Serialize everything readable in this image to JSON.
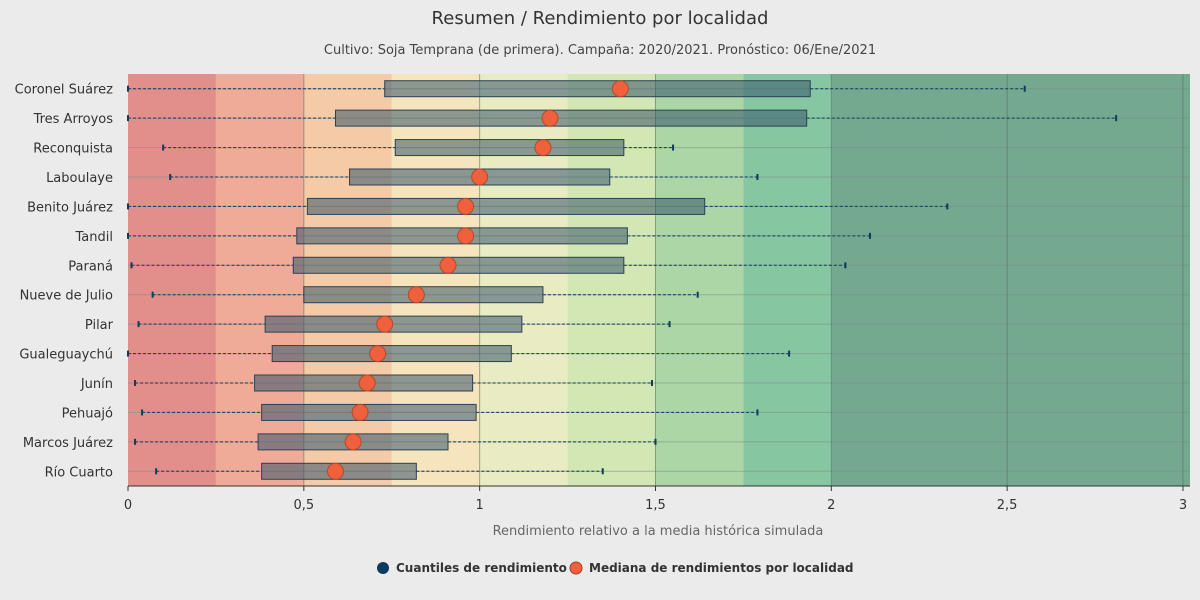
{
  "chart_data": {
    "type": "boxplot",
    "orientation": "horizontal",
    "title": "Resumen / Rendimiento por localidad",
    "subtitle": "Cultivo: Soja Temprana (de primera). Campaña: 2020/2021. Pronóstico: 06/Ene/2021",
    "xlabel": "Rendimiento relativo a la media histórica simulada",
    "ylabel": "",
    "xlim": [
      0,
      3.02
    ],
    "x_ticks": [
      0,
      0.5,
      1,
      1.5,
      2,
      2.5,
      3
    ],
    "x_tick_labels": [
      "0",
      "0,5",
      "1",
      "1,5",
      "2",
      "2,5",
      "3"
    ],
    "grid": true,
    "bands": [
      {
        "from": 0,
        "to": 0.25,
        "color": "#e28e8a"
      },
      {
        "from": 0.25,
        "to": 0.5,
        "color": "#efaa98"
      },
      {
        "from": 0.5,
        "to": 0.75,
        "color": "#f4cba6"
      },
      {
        "from": 0.75,
        "to": 1.0,
        "color": "#f6e4bd"
      },
      {
        "from": 1.0,
        "to": 1.25,
        "color": "#e9ecc3"
      },
      {
        "from": 1.25,
        "to": 1.5,
        "color": "#d2e7b4"
      },
      {
        "from": 1.5,
        "to": 1.75,
        "color": "#acd6a6"
      },
      {
        "from": 1.75,
        "to": 2.0,
        "color": "#86c6a1"
      },
      {
        "from": 2.0,
        "to": 3.02,
        "color": "#74a98f"
      }
    ],
    "categories": [
      "Coronel Suárez",
      "Tres Arroyos",
      "Reconquista",
      "Laboulaye",
      "Benito Juárez",
      "Tandil",
      "Paraná",
      "Nueve de Julio",
      "Pilar",
      "Gualeguaychú",
      "Junín",
      "Pehuajó",
      "Marcos Juárez",
      "Río Cuarto"
    ],
    "series": [
      {
        "name": "Cuantiles de rendimiento",
        "color": "#0d3b5e",
        "boxes": [
          {
            "min": 0.0,
            "q1": 0.73,
            "q3": 1.94,
            "max": 2.55
          },
          {
            "min": 0.0,
            "q1": 0.59,
            "q3": 1.93,
            "max": 2.81
          },
          {
            "min": 0.1,
            "q1": 0.76,
            "q3": 1.41,
            "max": 1.55
          },
          {
            "min": 0.12,
            "q1": 0.63,
            "q3": 1.37,
            "max": 1.79
          },
          {
            "min": 0.0,
            "q1": 0.51,
            "q3": 1.64,
            "max": 2.33
          },
          {
            "min": 0.0,
            "q1": 0.48,
            "q3": 1.42,
            "max": 2.11
          },
          {
            "min": 0.01,
            "q1": 0.47,
            "q3": 1.41,
            "max": 2.04
          },
          {
            "min": 0.07,
            "q1": 0.5,
            "q3": 1.18,
            "max": 1.62
          },
          {
            "min": 0.03,
            "q1": 0.39,
            "q3": 1.12,
            "max": 1.54
          },
          {
            "min": 0.0,
            "q1": 0.41,
            "q3": 1.09,
            "max": 1.88
          },
          {
            "min": 0.02,
            "q1": 0.36,
            "q3": 0.98,
            "max": 1.49
          },
          {
            "min": 0.04,
            "q1": 0.38,
            "q3": 0.99,
            "max": 1.79
          },
          {
            "min": 0.02,
            "q1": 0.37,
            "q3": 0.91,
            "max": 1.5
          },
          {
            "min": 0.08,
            "q1": 0.38,
            "q3": 0.82,
            "max": 1.35
          }
        ]
      },
      {
        "name": "Mediana de rendimientos por localidad",
        "color": "#f0603c",
        "values": [
          1.4,
          1.2,
          1.18,
          1.0,
          0.96,
          0.96,
          0.91,
          0.82,
          0.73,
          0.71,
          0.68,
          0.66,
          0.64,
          0.59
        ]
      }
    ],
    "legend": {
      "position": "bottom-center"
    }
  }
}
